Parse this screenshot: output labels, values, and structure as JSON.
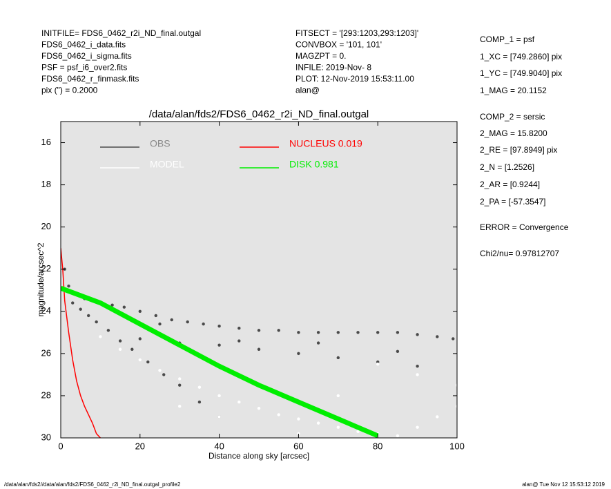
{
  "header": {
    "left": [
      "INITFILE= FDS6_0462_r2i_ND_final.outgal",
      "FDS6_0462_i_data.fits",
      "FDS6_0462_i_sigma.fits",
      "PSF    = psf_i6_over2.fits",
      "FDS6_0462_r_finmask.fits",
      "pix (\") =  0.2000"
    ],
    "middle": [
      "FITSECT = '[293:1203,293:1203]'",
      "CONVBOX = '101, 101'",
      "MAGZPT  =               0.",
      "INFILE: 2019-Nov- 8",
      "PLOT: 12-Nov-2019 15:53:11.00",
      "alan@"
    ],
    "right": [
      "COMP_1  = psf",
      "1_XC    = [749.2860] pix",
      "1_YC    = [749.9040] pix",
      "1_MAG   = 20.1152",
      "COMP_2  = sersic",
      "2_MAG   = 15.8200",
      "2_RE    = [97.8949] pix",
      "2_N     = [1.2526]",
      "2_AR    = [0.9244]",
      "2_PA    = [-57.3547]",
      "ERROR   = Convergence",
      "Chi2/nu=      0.97812707"
    ]
  },
  "footer": {
    "left": "/data/alan/fds2//data/alan/fds2/FDS6_0462_r2i_ND_final.outgal_profile2",
    "right": "alan@  Tue Nov 12 15:53:12 2019"
  },
  "chart_data": {
    "type": "scatter",
    "title": "/data/alan/fds2/FDS6_0462_r2i_ND_final.outgal",
    "x_label": "Distance along sky [arcsec]",
    "y_label": "magnitude/arcsec^2",
    "xlim": [
      0,
      100
    ],
    "xticks": [
      0,
      20,
      40,
      60,
      80,
      100
    ],
    "ylim": [
      30,
      15
    ],
    "yticks": [
      16,
      18,
      20,
      22,
      24,
      26,
      28,
      30
    ],
    "background": "#e4e4e4",
    "series": [
      {
        "name": "OBS",
        "color": "#4a4a4a",
        "mode": "points",
        "x": [
          1,
          2,
          3,
          4,
          6,
          8,
          10,
          13,
          16,
          20,
          24,
          28,
          32,
          36,
          40,
          45,
          50,
          55,
          60,
          65,
          70,
          75,
          80,
          85,
          90,
          95,
          99,
          3,
          5,
          7,
          9,
          12,
          15,
          18,
          22,
          26,
          30,
          35,
          40,
          20,
          30,
          40,
          50,
          60,
          70,
          80,
          90,
          25,
          45,
          65,
          85
        ],
        "values": [
          22.0,
          22.8,
          23.1,
          23.2,
          23.4,
          23.5,
          23.6,
          23.7,
          23.8,
          24.0,
          24.2,
          24.4,
          24.5,
          24.6,
          24.7,
          24.8,
          24.9,
          24.9,
          25.0,
          25.0,
          25.0,
          25.0,
          25.0,
          25.0,
          25.1,
          25.2,
          25.3,
          23.6,
          23.9,
          24.2,
          24.5,
          24.9,
          25.4,
          25.8,
          26.4,
          27.0,
          27.5,
          28.3,
          29.0,
          25.3,
          25.5,
          25.6,
          25.8,
          26.0,
          26.2,
          26.4,
          26.6,
          24.6,
          25.4,
          25.5,
          25.9
        ]
      },
      {
        "name": "MODEL",
        "color": "#ffffff",
        "mode": "points",
        "x": [
          10,
          15,
          20,
          25,
          30,
          35,
          40,
          45,
          50,
          55,
          60,
          65,
          70,
          75,
          80,
          85,
          90,
          95,
          100,
          30,
          50,
          70,
          90,
          40,
          60,
          80,
          100
        ],
        "values": [
          25.2,
          25.8,
          26.3,
          26.8,
          27.2,
          27.6,
          28.0,
          28.3,
          28.6,
          28.9,
          29.1,
          29.3,
          29.5,
          29.7,
          29.8,
          29.9,
          29.5,
          29.0,
          28.5,
          28.5,
          27.5,
          28.0,
          27.0,
          29.0,
          29.8,
          26.5,
          27.5
        ]
      },
      {
        "name": "NUCLEUS  0.019",
        "color": "#ff0000",
        "mode": "line",
        "x": [
          0,
          0.5,
          1,
          2,
          3,
          4,
          5,
          6,
          7,
          8,
          9,
          10
        ],
        "values": [
          21.0,
          22.0,
          23.5,
          25.0,
          26.3,
          27.3,
          28.0,
          28.5,
          28.9,
          29.3,
          29.8,
          30.0
        ]
      },
      {
        "name": "DISK  0.981",
        "color": "#00ee00",
        "mode": "band",
        "x": [
          0,
          10,
          20,
          30,
          40,
          50,
          60,
          70,
          80
        ],
        "values": [
          22.9,
          23.6,
          24.6,
          25.6,
          26.6,
          27.5,
          28.3,
          29.1,
          29.9
        ]
      }
    ]
  }
}
